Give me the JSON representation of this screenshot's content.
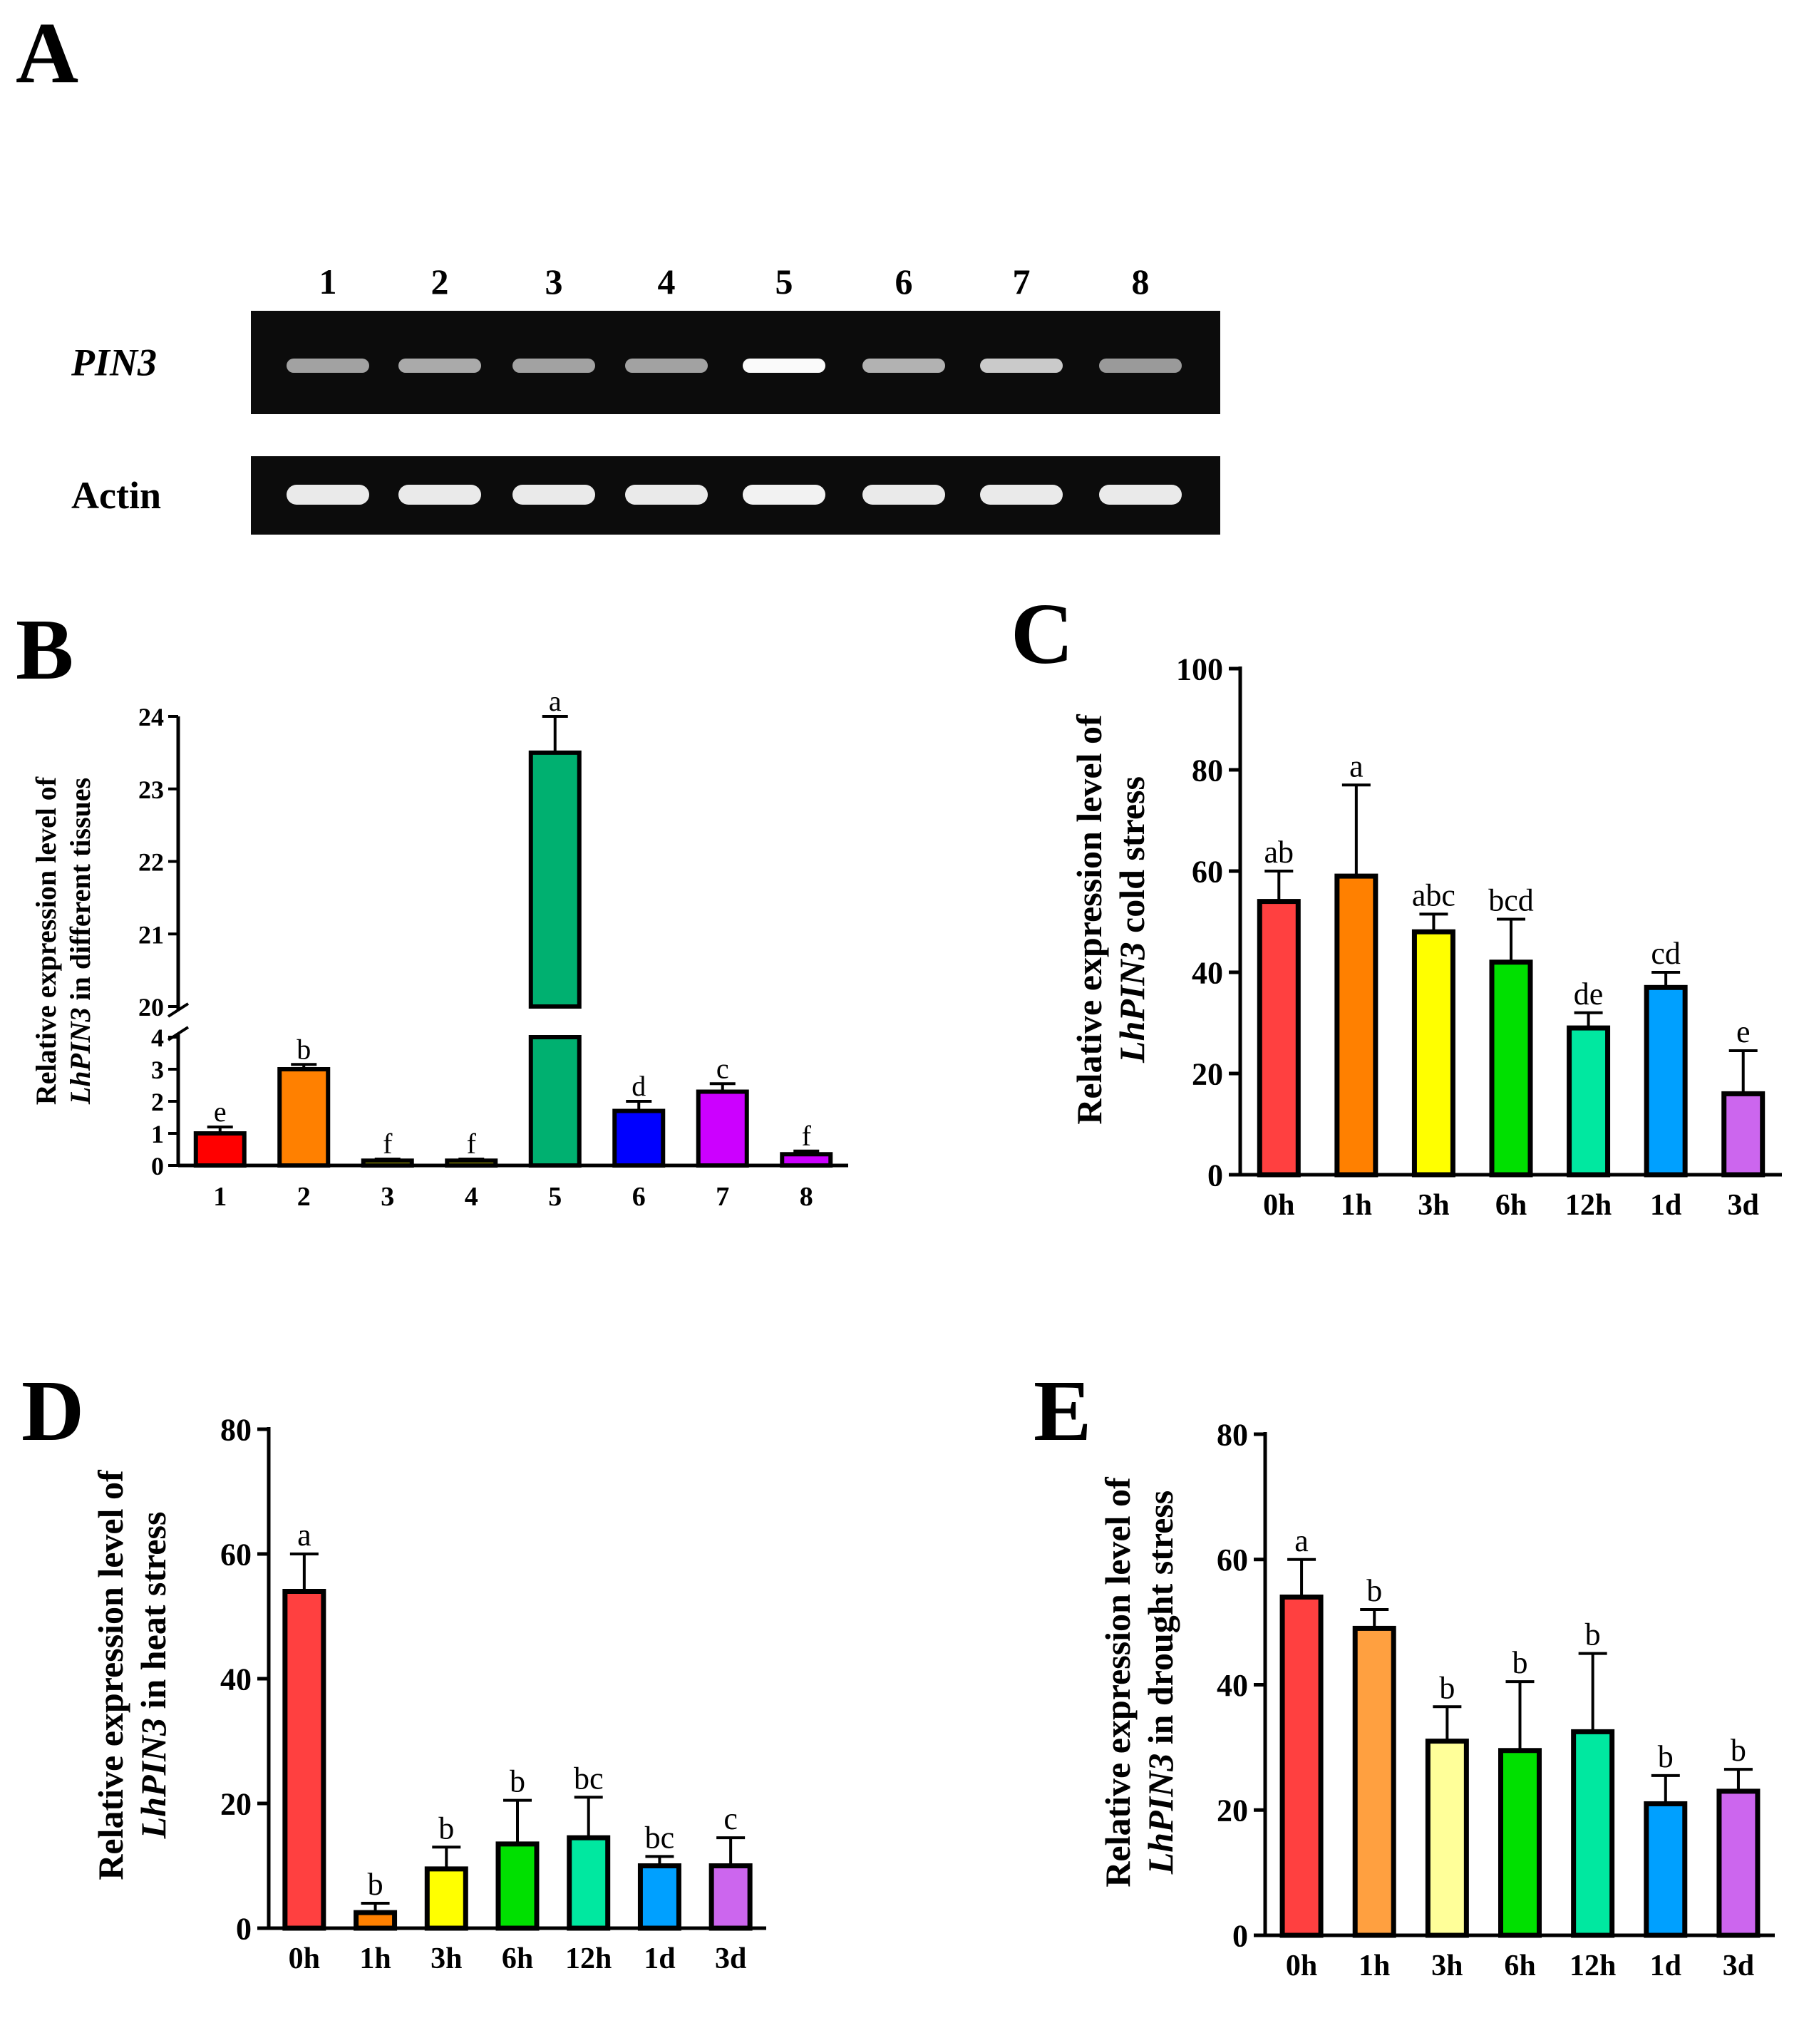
{
  "panel_a": {
    "letter": "A",
    "lanes": [
      "1",
      "2",
      "3",
      "4",
      "5",
      "6",
      "7",
      "8"
    ],
    "gel_rows": [
      {
        "label": "PIN3",
        "band_intensity": [
          0.45,
          0.5,
          0.45,
          0.45,
          1.0,
          0.55,
          0.7,
          0.4
        ]
      },
      {
        "label": "Actin",
        "band_intensity": [
          0.9,
          0.9,
          0.9,
          0.9,
          0.95,
          0.9,
          0.9,
          0.9
        ]
      }
    ]
  },
  "chart_data": [
    {
      "id": "B",
      "letter": "B",
      "type": "bar",
      "categories": [
        "1",
        "2",
        "3",
        "4",
        "5",
        "6",
        "7",
        "8"
      ],
      "values": [
        1.0,
        3.0,
        0.15,
        0.15,
        23.5,
        1.7,
        2.3,
        0.35
      ],
      "errors": [
        0.2,
        0.15,
        0.05,
        0.05,
        0.5,
        0.3,
        0.25,
        0.1
      ],
      "labels": [
        "e",
        "b",
        "f",
        "f",
        "a",
        "d",
        "c",
        "f"
      ],
      "colors": [
        "#ff0000",
        "#ff8000",
        "#ffff00",
        "#ffff00",
        "#00b070",
        "#0000ff",
        "#cc00ff",
        "#cc00ff"
      ],
      "ylabel_line1": "Relative expression level of",
      "ylabel_italic": "LhPIN3",
      "ylabel_rest": " in different tissues",
      "broken_axis": true,
      "lower_ylim": [
        0,
        4
      ],
      "upper_ylim": [
        20,
        24
      ],
      "lower_ticks": [
        "0",
        "1",
        "2",
        "3",
        "4"
      ],
      "upper_ticks": [
        "20",
        "21",
        "22",
        "23",
        "24"
      ]
    },
    {
      "id": "C",
      "letter": "C",
      "type": "bar",
      "categories": [
        "0h",
        "1h",
        "3h",
        "6h",
        "12h",
        "1d",
        "3d"
      ],
      "values": [
        54,
        59,
        48,
        42,
        29,
        37,
        16
      ],
      "errors": [
        6,
        18,
        3.5,
        8.5,
        3,
        3,
        8.5
      ],
      "labels": [
        "ab",
        "a",
        "abc",
        "bcd",
        "de",
        "cd",
        "e"
      ],
      "colors": [
        "#ff4040",
        "#ff8000",
        "#ffff00",
        "#00e000",
        "#00e8a0",
        "#00a0ff",
        "#cc66ee"
      ],
      "ylabel_line1": "Relative expression level of",
      "ylabel_italic": "LhPIN3",
      "ylabel_rest": " cold stress",
      "ylim": [
        0,
        100
      ],
      "ticks": [
        "0",
        "20",
        "40",
        "60",
        "80",
        "100"
      ]
    },
    {
      "id": "D",
      "letter": "D",
      "type": "bar",
      "categories": [
        "0h",
        "1h",
        "3h",
        "6h",
        "12h",
        "1d",
        "3d"
      ],
      "values": [
        54,
        2.5,
        9.5,
        13.5,
        14.5,
        10,
        10
      ],
      "errors": [
        6,
        1.5,
        3.5,
        7,
        6.5,
        1.5,
        4.5
      ],
      "labels": [
        "a",
        "b",
        "b",
        "b",
        "bc",
        "bc",
        "c"
      ],
      "colors": [
        "#ff4040",
        "#ff8000",
        "#ffff00",
        "#00e000",
        "#00e8a0",
        "#00a0ff",
        "#cc66ee"
      ],
      "ylabel_line1": "Relative expression level of",
      "ylabel_italic": "LhPIN3",
      "ylabel_rest": " in heat stress",
      "ylim": [
        0,
        80
      ],
      "ticks": [
        "0",
        "20",
        "40",
        "60",
        "80"
      ]
    },
    {
      "id": "E",
      "letter": "E",
      "type": "bar",
      "categories": [
        "0h",
        "1h",
        "3h",
        "6h",
        "12h",
        "1d",
        "3d"
      ],
      "values": [
        54,
        49,
        31,
        29.5,
        32.5,
        21,
        23
      ],
      "errors": [
        6,
        3,
        5.5,
        11,
        12.5,
        4.5,
        3.5
      ],
      "labels": [
        "a",
        "b",
        "b",
        "b",
        "b",
        "b",
        "b"
      ],
      "colors": [
        "#ff4040",
        "#ffa040",
        "#ffff99",
        "#00e000",
        "#00e8a0",
        "#00a0ff",
        "#cc66ee"
      ],
      "ylabel_line1": "Relative expression level of",
      "ylabel_italic": "LhPIN3",
      "ylabel_rest": " in drought stress",
      "ylim": [
        0,
        80
      ],
      "ticks": [
        "0",
        "20",
        "40",
        "60",
        "80"
      ]
    }
  ]
}
